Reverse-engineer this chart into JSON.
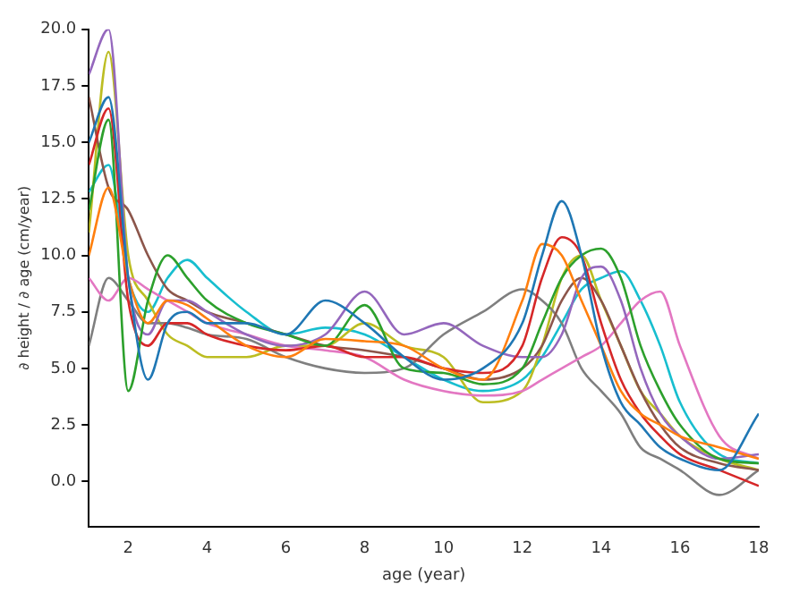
{
  "chart_data": {
    "type": "line",
    "xlabel": "age (year)",
    "ylabel": "∂ height / ∂ age (cm/year)",
    "xlim": [
      1,
      18
    ],
    "xticks": [
      2,
      4,
      6,
      8,
      10,
      12,
      14,
      16,
      18
    ],
    "ylim": [
      -2,
      20
    ],
    "yticks": [
      {
        "value": 0,
        "label": "0.0"
      },
      {
        "value": 2.5,
        "label": "2.5"
      },
      {
        "value": 5,
        "label": "5.0"
      },
      {
        "value": 7.5,
        "label": "7.5"
      },
      {
        "value": 10,
        "label": "10.0"
      },
      {
        "value": 12.5,
        "label": "12.5"
      },
      {
        "value": 15,
        "label": "15.0"
      },
      {
        "value": 17.5,
        "label": "17.5"
      },
      {
        "value": 20,
        "label": "20.0"
      }
    ],
    "grid": false,
    "legend": false,
    "marker": "none",
    "line_style": "solid",
    "x": [
      1,
      1.5,
      2,
      2.5,
      3,
      3.5,
      4,
      5,
      6,
      7,
      8,
      9,
      10,
      11,
      12,
      12.5,
      13,
      13.5,
      14,
      14.5,
      15,
      15.5,
      16,
      17,
      18
    ],
    "series": [
      {
        "color": "#1f77b4",
        "values": [
          15,
          17,
          9,
          4.5,
          7,
          7.5,
          7,
          7,
          6.5,
          8,
          7,
          5.5,
          4.5,
          5,
          7,
          10,
          12.4,
          10,
          6,
          3.5,
          2.5,
          1.5,
          1,
          0.5,
          3
        ]
      },
      {
        "color": "#ff7f0e",
        "values": [
          10,
          13,
          9,
          7,
          8,
          7.8,
          7.2,
          6,
          5.5,
          6.3,
          6.2,
          6,
          5,
          4.5,
          8,
          10.5,
          10,
          8,
          6,
          4,
          3,
          2.5,
          2,
          1.5,
          1
        ]
      },
      {
        "color": "#2ca02c",
        "values": [
          12,
          16,
          4,
          8,
          10,
          9,
          8,
          7,
          6.5,
          6,
          7.8,
          5,
          4.8,
          4.3,
          5,
          7,
          9,
          10,
          10.3,
          9,
          6,
          4,
          2.5,
          1,
          0.8
        ]
      },
      {
        "color": "#d62728",
        "values": [
          14,
          16.5,
          8,
          6,
          7,
          7,
          6.5,
          6,
          5.8,
          6,
          5.5,
          5.5,
          5,
          4.8,
          6,
          9,
          10.8,
          10,
          7,
          4.5,
          3,
          2,
          1.2,
          0.5,
          -0.2
        ]
      },
      {
        "color": "#9467bd",
        "values": [
          18,
          20,
          9,
          6.5,
          8,
          8,
          7.5,
          6.5,
          6,
          6.5,
          8.4,
          6.5,
          7,
          6,
          5.5,
          5.5,
          6.5,
          9,
          9.5,
          8,
          5,
          3,
          2,
          1,
          1.2
        ]
      },
      {
        "color": "#8c564b",
        "values": [
          17,
          13,
          12,
          10,
          8.5,
          8,
          7.5,
          7,
          6.5,
          6,
          5.8,
          5.5,
          5,
          4.5,
          5,
          6,
          8,
          9,
          8,
          6,
          4,
          2.5,
          1.5,
          0.8,
          0.5
        ]
      },
      {
        "color": "#e377c2",
        "values": [
          9,
          8,
          9,
          8.5,
          8,
          7.5,
          7,
          6.5,
          6,
          5.8,
          5.5,
          4.5,
          4,
          3.8,
          4,
          4.5,
          5,
          5.5,
          6,
          7,
          8,
          8.4,
          6,
          2,
          1
        ]
      },
      {
        "color": "#7f7f7f",
        "values": [
          6,
          9,
          8,
          7,
          7,
          6.8,
          6.5,
          6.3,
          5.5,
          5,
          4.8,
          5,
          6.5,
          7.5,
          8.5,
          8,
          7,
          5,
          4,
          3,
          1.5,
          1,
          0.5,
          -0.6,
          0.5
        ]
      },
      {
        "color": "#bcbd22",
        "values": [
          11,
          19,
          10,
          8,
          6.5,
          6,
          5.5,
          5.5,
          6,
          6,
          7,
          6,
          5.5,
          3.5,
          4,
          6,
          9,
          10,
          8,
          6,
          4,
          3,
          2,
          1,
          0.5
        ]
      },
      {
        "color": "#17becf",
        "values": [
          12.8,
          14,
          9,
          7.5,
          9,
          9.8,
          9,
          7.5,
          6.5,
          6.8,
          6.5,
          5.5,
          4.5,
          4,
          4.5,
          5.5,
          7,
          8.5,
          9,
          9.3,
          8,
          6,
          3.5,
          1.2,
          0.8
        ]
      }
    ]
  }
}
